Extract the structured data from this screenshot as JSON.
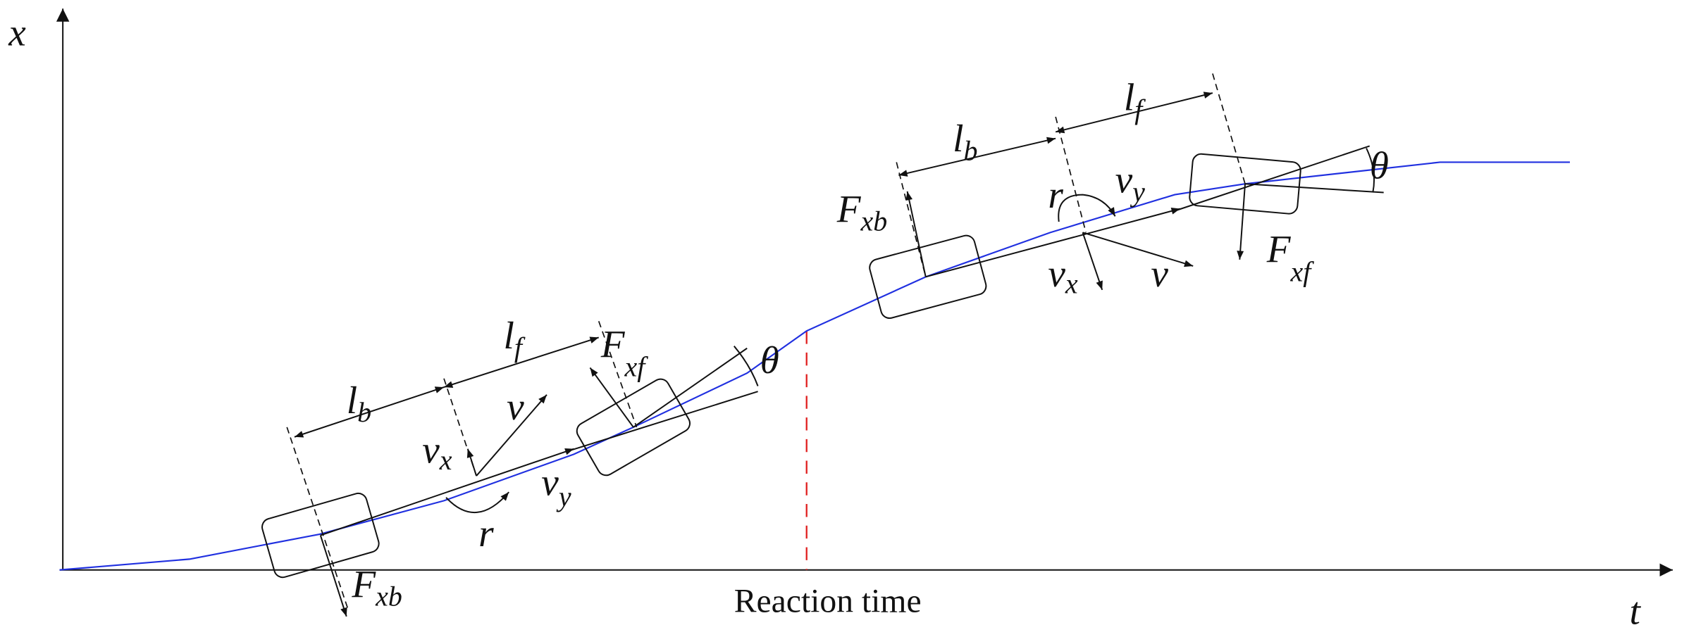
{
  "axes": {
    "vertical": "x",
    "horizontal": "t"
  },
  "reaction_label": "Reaction time",
  "left": {
    "lb": {
      "main": "l",
      "sub": "b"
    },
    "lf": {
      "main": "l",
      "sub": "f"
    },
    "v": "v",
    "vx": {
      "main": "v",
      "sub": "x"
    },
    "vy": {
      "main": "v",
      "sub": "y"
    },
    "r": "r",
    "fxb": {
      "main": "F",
      "sub": "xb"
    },
    "fxf": {
      "main": "F",
      "sub": "xf"
    },
    "theta": "θ"
  },
  "right": {
    "lb": {
      "main": "l",
      "sub": "b"
    },
    "lf": {
      "main": "l",
      "sub": "f"
    },
    "fxb": {
      "main": "F",
      "sub": "xb"
    },
    "r": "r",
    "vy": {
      "main": "v",
      "sub": "y"
    },
    "vx": {
      "main": "v",
      "sub": "x"
    },
    "v": "v",
    "fxf": {
      "main": "F",
      "sub": "xf"
    },
    "theta": "θ"
  }
}
